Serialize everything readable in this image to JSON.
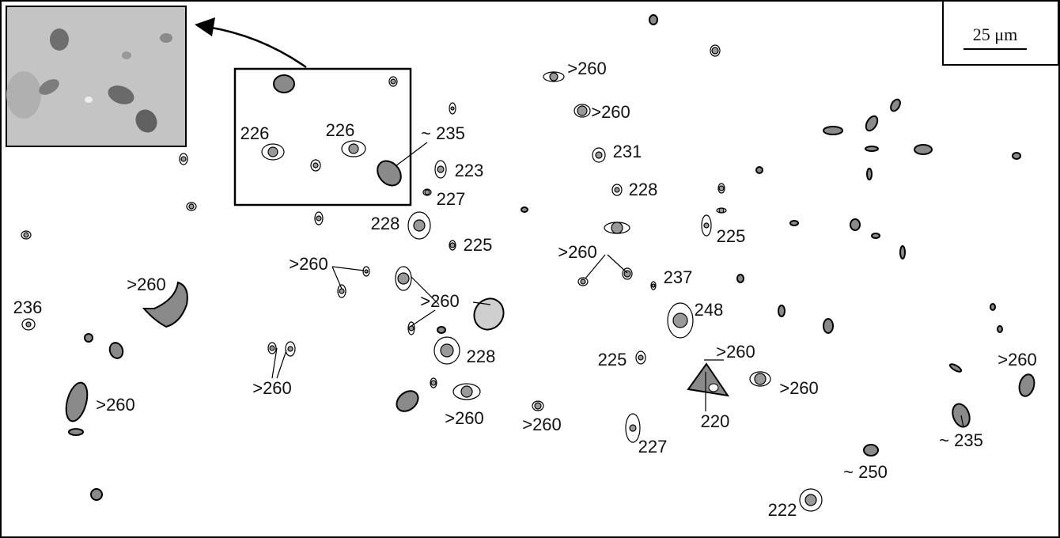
{
  "scale_bar": "25 μm",
  "labels": [
    ">260",
    ">260",
    "226",
    "226",
    "~ 235",
    "231",
    "223",
    "227",
    "228",
    "228",
    "225",
    "225",
    ">260",
    ">260",
    "237",
    ">260",
    ">260",
    "248",
    "236",
    ">260",
    "228",
    "225",
    ">260",
    ">260",
    ">260",
    ">260",
    ">260",
    ">260",
    "220",
    "227",
    "~ 235",
    "~ 250",
    "222"
  ]
}
